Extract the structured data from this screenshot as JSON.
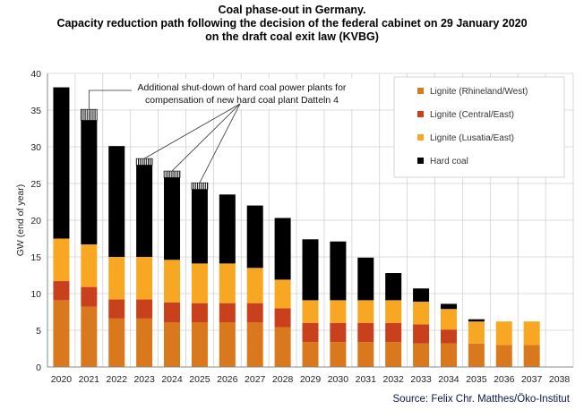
{
  "title_line1": "Coal phase-out in Germany.",
  "title_line2": "Capacity reduction path following the decision of the federal cabinet on 29 January 2020",
  "title_line3": "on the draft coal exit law (KVBG)",
  "source": "Source: Felix Chr. Matthes/Öko-Institut",
  "annotation_line1": "Additional shut-down of hard coal power plants for",
  "annotation_line2": "compensation of new hard coal plant Datteln 4",
  "colors": {
    "Lignite (Rhineland/West)": "#d9781c",
    "Lignite (Central/East)": "#c8401c",
    "Lignite (Lusatia/East)": "#f7a722",
    "Hard coal": "#000000"
  },
  "chart_data": {
    "type": "bar",
    "stacked": true,
    "categories": [
      "2020",
      "2021",
      "2022",
      "2023",
      "2024",
      "2025",
      "2026",
      "2027",
      "2028",
      "2029",
      "2030",
      "2031",
      "2032",
      "2033",
      "2034",
      "2035",
      "2036",
      "2037",
      "2038"
    ],
    "ylabel": "GW (end of year)",
    "ylim": [
      0,
      40
    ],
    "yticks": [
      0,
      5,
      10,
      15,
      20,
      25,
      30,
      35,
      40
    ],
    "grid": true,
    "legend_position": "top-right",
    "series": [
      {
        "name": "Lignite (Rhineland/West)",
        "values": [
          9.1,
          8.2,
          6.6,
          6.6,
          6.1,
          6.1,
          6.1,
          6.1,
          5.4,
          3.4,
          3.4,
          3.4,
          3.4,
          3.2,
          3.2,
          3.2,
          3.0,
          3.0,
          0
        ]
      },
      {
        "name": "Lignite (Central/East)",
        "values": [
          2.6,
          2.7,
          2.6,
          2.6,
          2.7,
          2.6,
          2.6,
          2.6,
          2.6,
          2.6,
          2.6,
          2.6,
          2.6,
          2.6,
          1.9,
          0,
          0,
          0,
          0
        ]
      },
      {
        "name": "Lignite (Lusatia/East)",
        "values": [
          5.8,
          5.8,
          5.8,
          5.8,
          5.8,
          5.4,
          5.4,
          4.8,
          3.9,
          3.1,
          3.1,
          3.1,
          3.1,
          3.1,
          2.8,
          3.0,
          3.2,
          3.2,
          0
        ]
      },
      {
        "name": "Hard coal",
        "values": [
          20.6,
          16.9,
          15.1,
          12.5,
          11.2,
          10.1,
          9.4,
          8.5,
          8.4,
          8.3,
          8.0,
          5.8,
          3.7,
          1.8,
          0.7,
          0.3,
          0,
          0,
          0
        ]
      },
      {
        "name": "Additional hard coal shut-down",
        "values": [
          0,
          1.5,
          0,
          0.9,
          0.9,
          0.9,
          0,
          0,
          0,
          0,
          0,
          0,
          0,
          0,
          0,
          0,
          0,
          0,
          0
        ]
      }
    ],
    "annotation": "Additional shut-down of hard coal power plants for compensation of new hard coal plant Datteln 4"
  }
}
